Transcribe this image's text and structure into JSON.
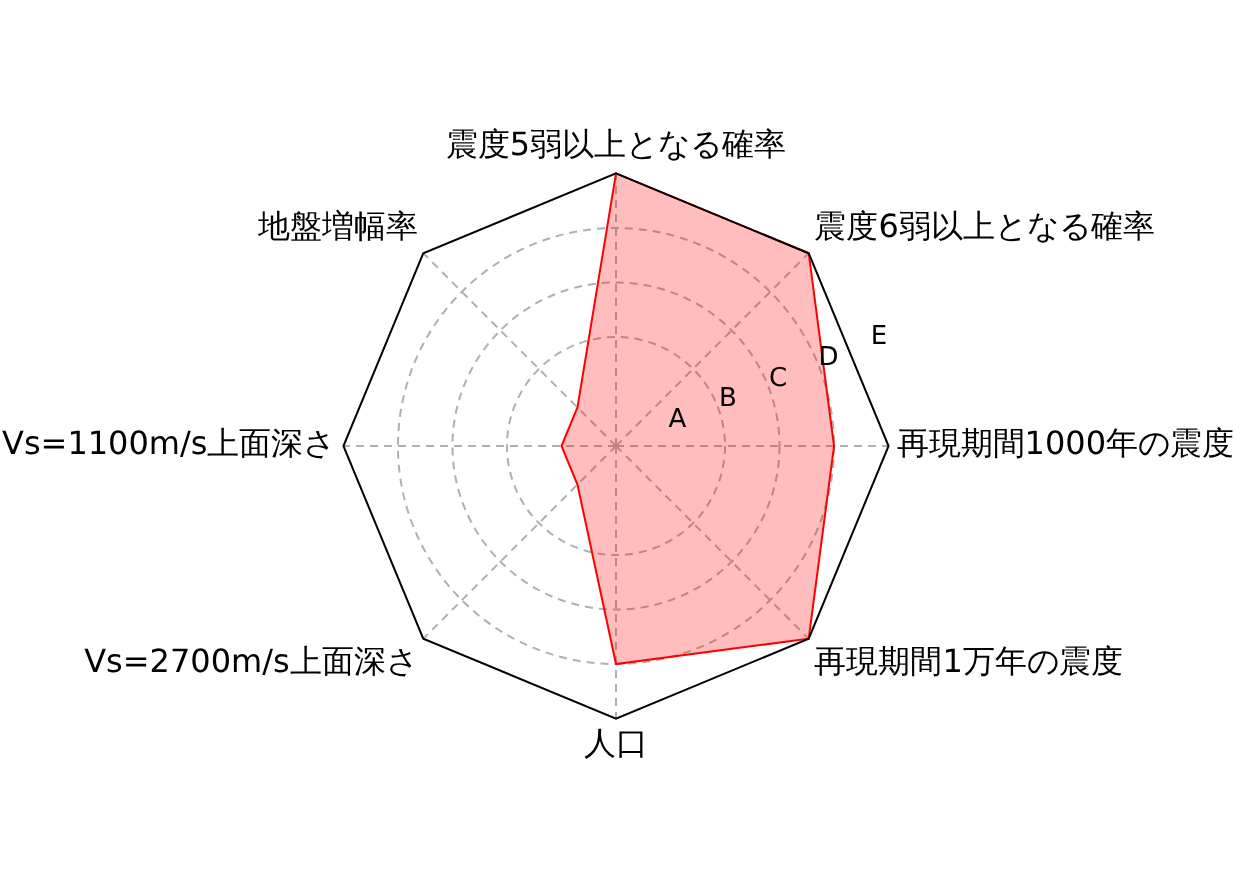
{
  "chart_data": {
    "type": "radar",
    "categories": [
      "震度5弱以上となる確率",
      "震度6弱以上となる確率",
      "再現期間1000年の震度",
      "再現期間1万年の震度",
      "人口",
      "Vs=2700m/s上面深さ",
      "Vs=1100m/s上面深さ",
      "地盤増幅率"
    ],
    "series": [
      {
        "color": "#ff0000",
        "values": [
          5,
          5,
          4,
          5,
          4,
          1,
          1,
          1
        ]
      }
    ],
    "ylim": [
      0,
      5
    ],
    "yticks": [
      {
        "value": 1,
        "label": "A"
      },
      {
        "value": 2,
        "label": "B"
      },
      {
        "value": 3,
        "label": "C"
      },
      {
        "value": 4,
        "label": "D"
      },
      {
        "value": 5,
        "label": "E"
      }
    ],
    "grid": true,
    "legend": false
  }
}
